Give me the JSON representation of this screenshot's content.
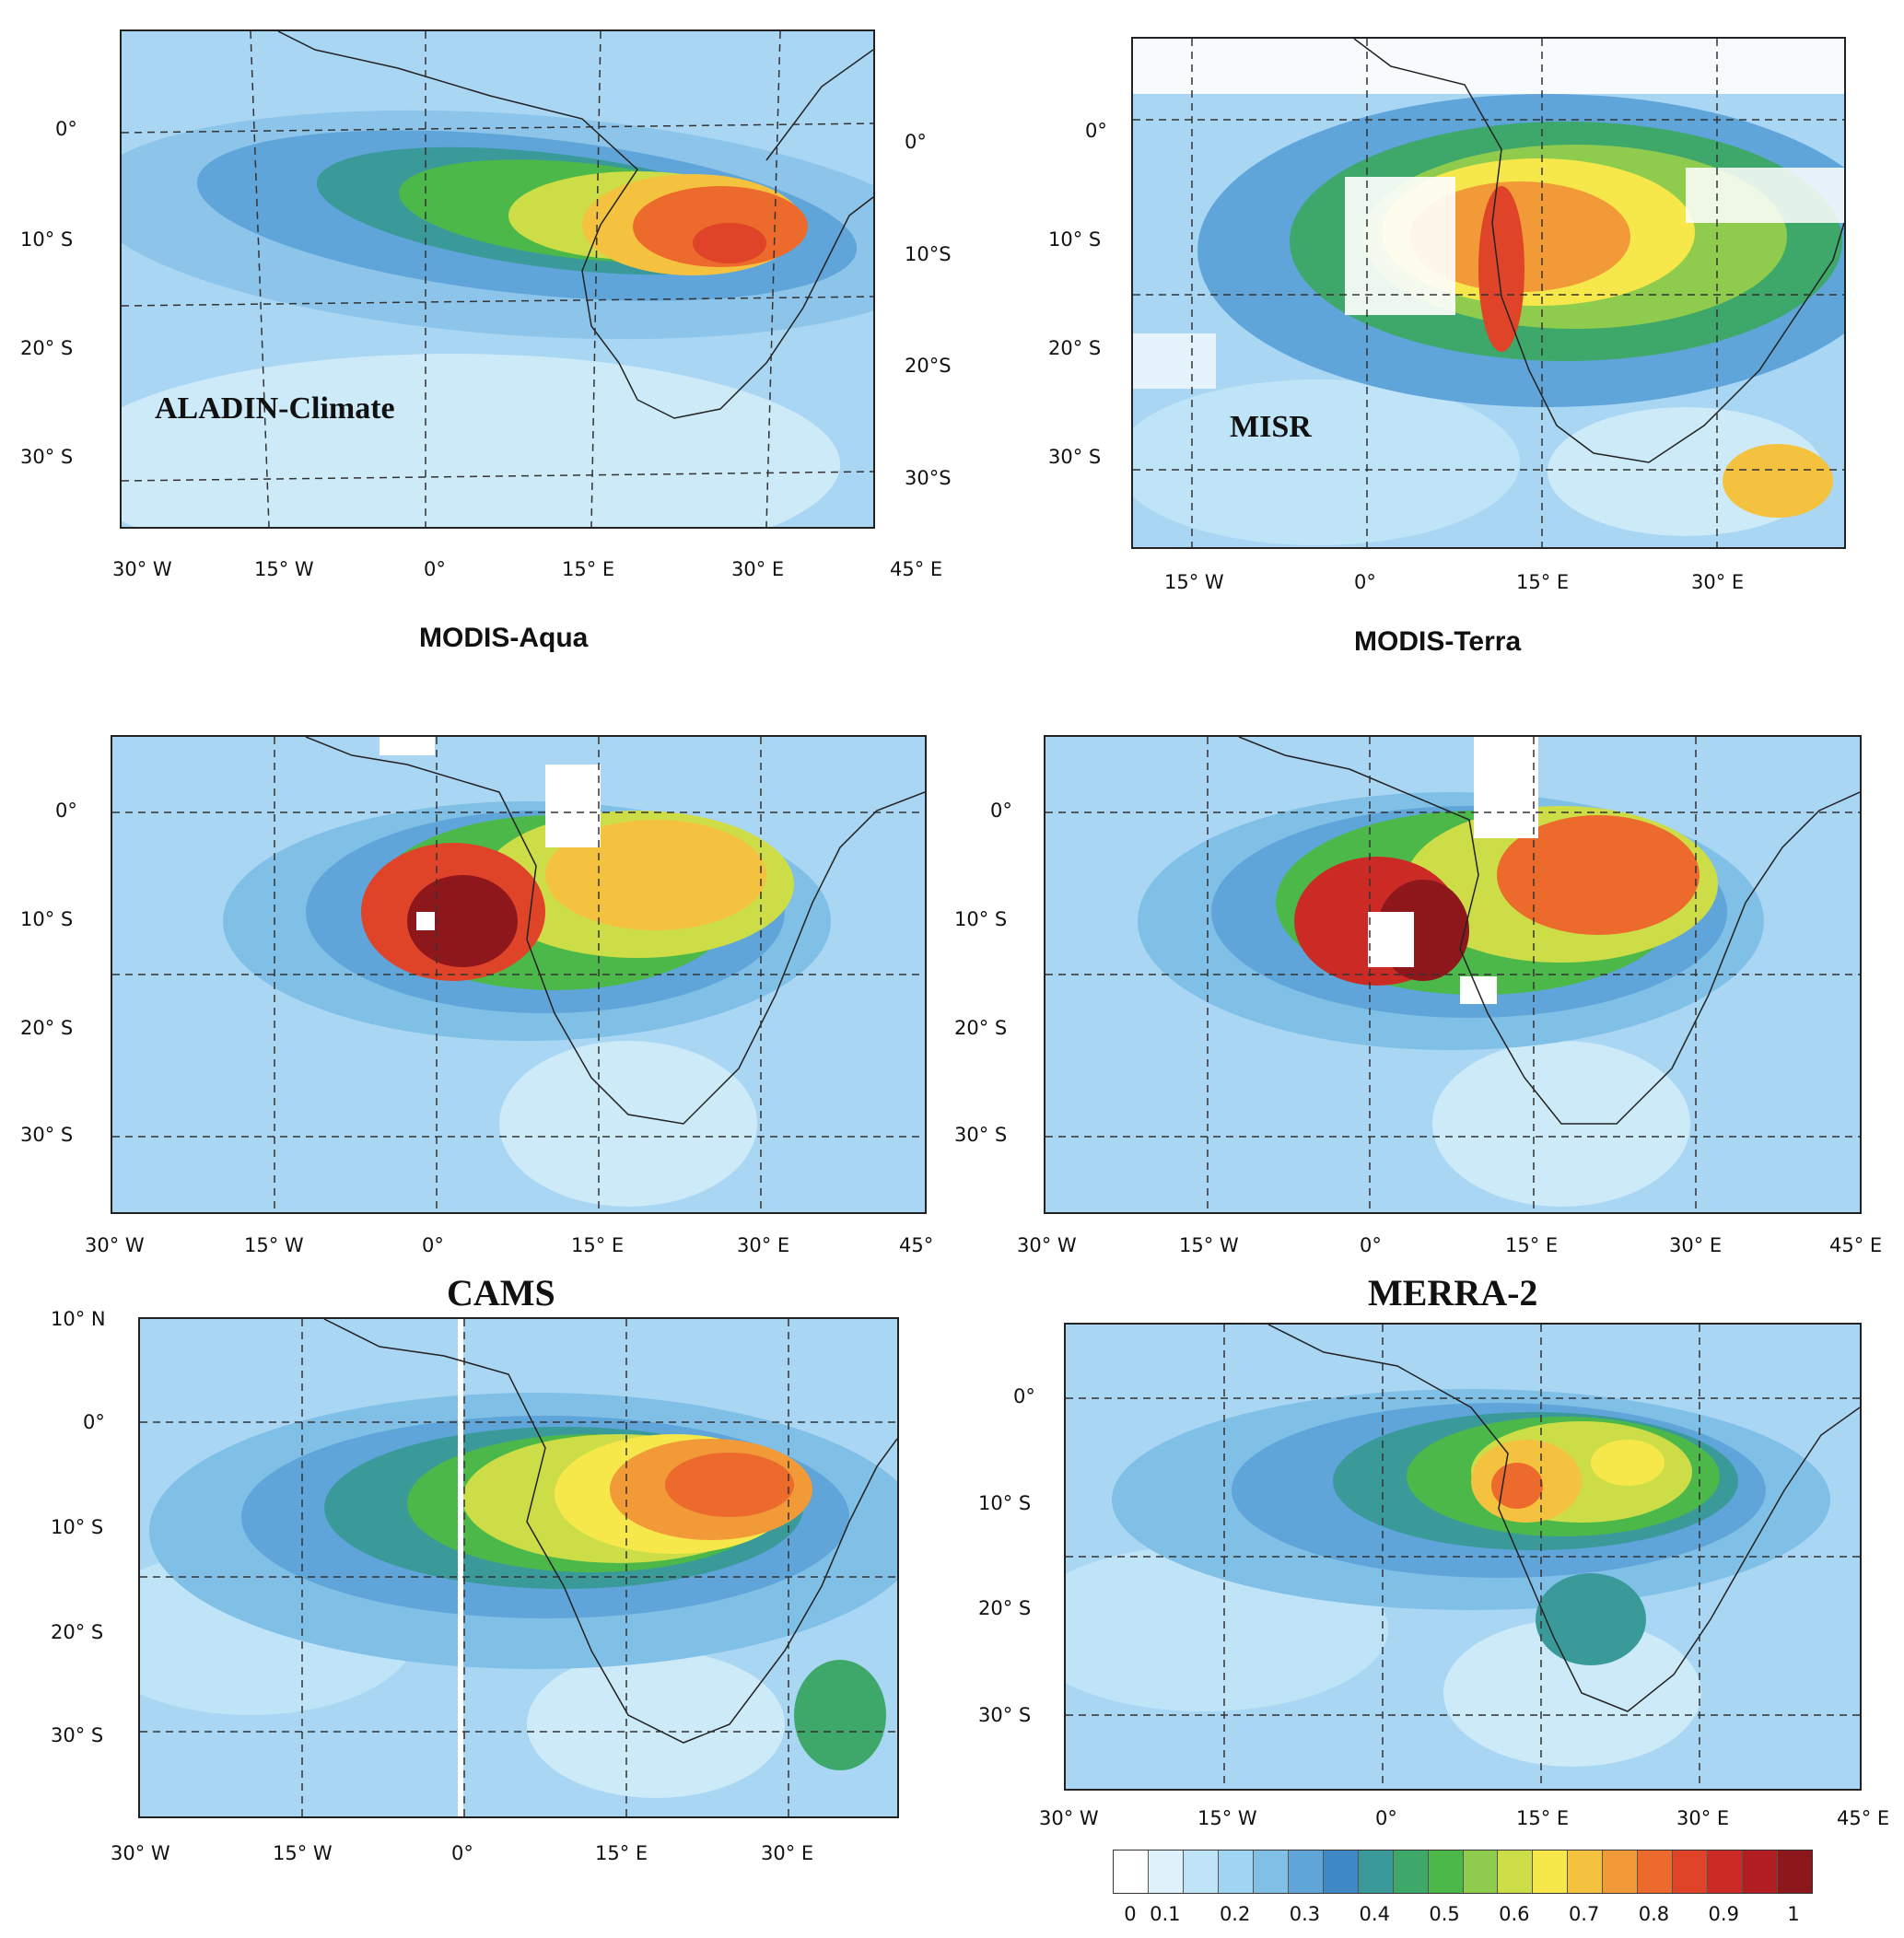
{
  "panels": [
    {
      "title": "",
      "inmap_label": "ALADIN-Climate",
      "ylabels_left": [
        "0°",
        "10° S",
        "20° S",
        "30° S"
      ],
      "ylabels_right": [
        "0°",
        "10°S",
        "20°S",
        "30°S"
      ],
      "xlabels": [
        "30° W",
        "15° W",
        "0°",
        "15° E",
        "30° E",
        "45° E"
      ]
    },
    {
      "title": "",
      "inmap_label": "MISR",
      "ylabels_left": [
        "0°",
        "10° S",
        "20° S",
        "30° S"
      ],
      "ylabels_right": [],
      "xlabels": [
        "15° W",
        "0°",
        "15° E",
        "30° E"
      ]
    },
    {
      "title": "MODIS-Aqua",
      "inmap_label": "",
      "ylabels_left": [
        "0°",
        "10° S",
        "20° S",
        "30° S"
      ],
      "ylabels_right": [],
      "xlabels": [
        "30° W",
        "15° W",
        "0°",
        "15° E",
        "30° E",
        "45°"
      ]
    },
    {
      "title": "MODIS-Terra",
      "inmap_label": "",
      "ylabels_left": [
        "0°",
        "10° S",
        "20° S",
        "30° S"
      ],
      "ylabels_right": [],
      "xlabels": [
        "30° W",
        "15° W",
        "0°",
        "15° E",
        "30° E",
        "45° E"
      ]
    },
    {
      "title": "CAMS",
      "inmap_label": "",
      "ylabels_left": [
        "10° N",
        "0°",
        "10° S",
        "20° S",
        "30° S"
      ],
      "ylabels_right": [],
      "xlabels": [
        "30° W",
        "15° W",
        "0°",
        "15° E",
        "30° E"
      ]
    },
    {
      "title": "MERRA-2",
      "inmap_label": "",
      "ylabels_left": [
        "0°",
        "10° S",
        "20° S",
        "30° S"
      ],
      "ylabels_right": [],
      "xlabels": [
        "30° W",
        "15° W",
        "0°",
        "15° E",
        "30° E",
        "45° E"
      ]
    }
  ],
  "colorbar": {
    "colors": [
      "#ffffff",
      "#dff2fb",
      "#bfe4f7",
      "#9fd5f3",
      "#80bfe6",
      "#5fa5d9",
      "#3f88c6",
      "#3a9a9a",
      "#3ea86b",
      "#4db84a",
      "#8fcc4e",
      "#cddd48",
      "#f6e84a",
      "#f5c240",
      "#f29a38",
      "#ec6a2c",
      "#e04428",
      "#cc2a24",
      "#b01e22",
      "#8e171c"
    ],
    "tick_labels": [
      "0",
      "0.1",
      "0.2",
      "0.3",
      "0.4",
      "0.5",
      "0.6",
      "0.7",
      "0.8",
      "0.9",
      "1"
    ]
  }
}
